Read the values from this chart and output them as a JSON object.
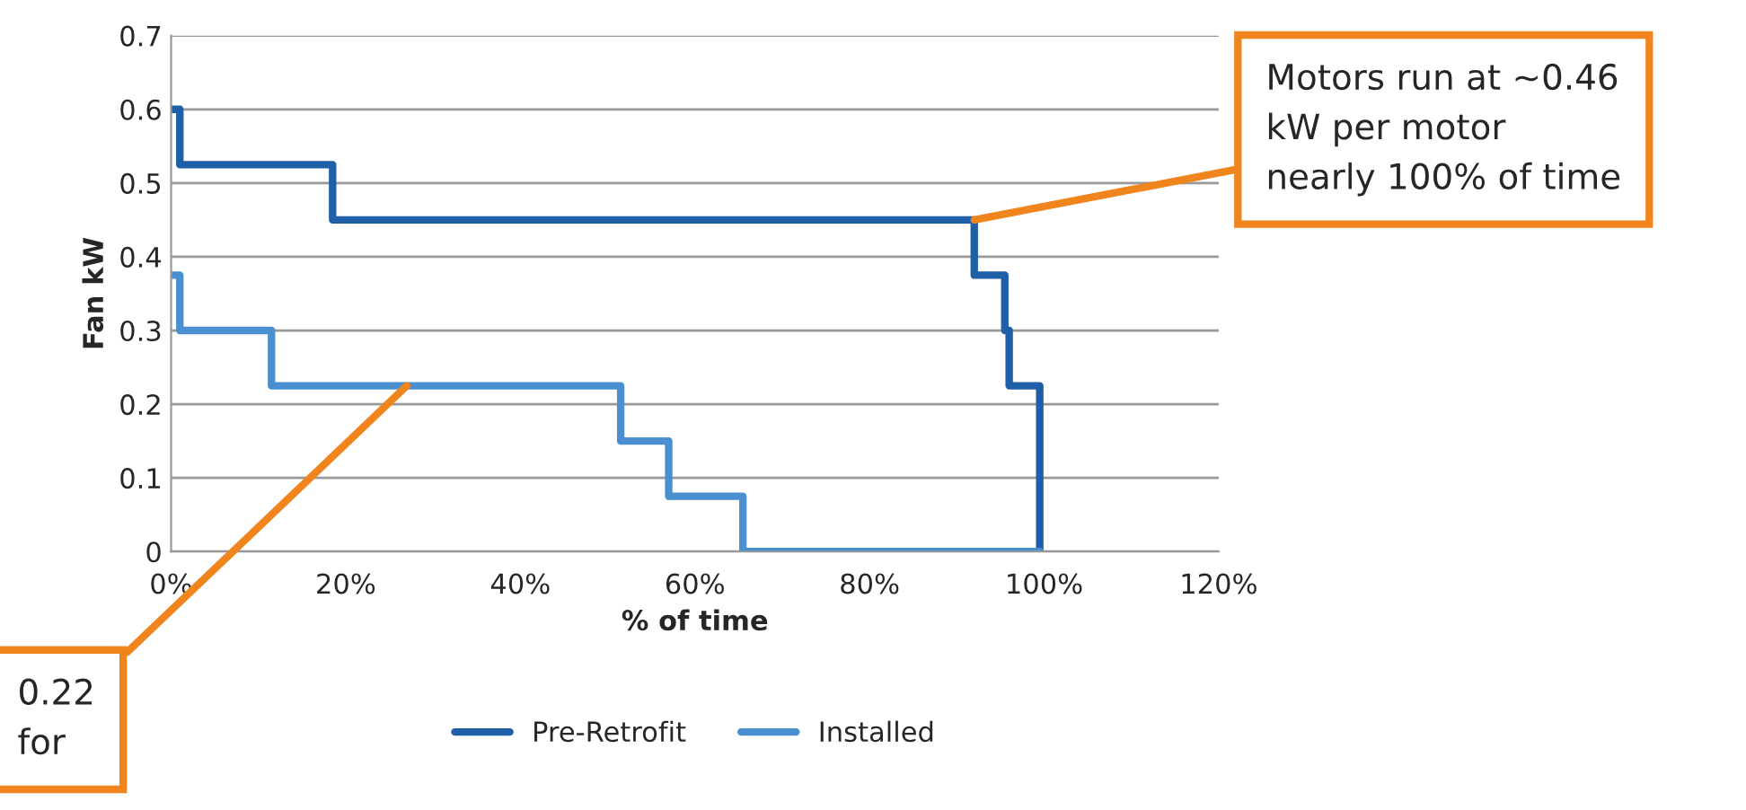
{
  "chart_data": {
    "type": "step",
    "xlabel": "% of time",
    "ylabel": "Fan kW",
    "series": [
      {
        "name": "Pre-Retrofit",
        "color": "#1f5fa8",
        "x": [
          0,
          1,
          18.5,
          92,
          95.5,
          96,
          99.5
        ],
        "values": [
          0.6,
          0.525,
          0.45,
          0.375,
          0.3,
          0.225,
          0
        ]
      },
      {
        "name": "Installed",
        "color": "#4a90d0",
        "x": [
          0,
          1,
          11.5,
          51.5,
          57,
          65.5,
          99.5
        ],
        "values": [
          0.375,
          0.3,
          0.225,
          0.15,
          0.075,
          0,
          0
        ]
      }
    ],
    "xlim": [
      0,
      120
    ],
    "xticks": [
      {
        "value": 0,
        "label": "0%"
      },
      {
        "value": 20,
        "label": "20%"
      },
      {
        "value": 40,
        "label": "40%"
      },
      {
        "value": 60,
        "label": "60%"
      },
      {
        "value": 80,
        "label": "80%"
      },
      {
        "value": 100,
        "label": "100%"
      },
      {
        "value": 120,
        "label": "120%"
      }
    ],
    "ylim": [
      0,
      0.7
    ],
    "yticks": [
      0,
      0.1,
      0.2,
      0.3,
      0.4,
      0.5,
      0.6,
      0.7
    ],
    "grid": "y",
    "legend": "bottom",
    "line_style": "solid",
    "annotations": [
      {
        "text": "Motors run at ~0.46\nkW per motor\nnearly 100% of time",
        "x": 92,
        "y": 0.45
      },
      {
        "text": "0.22\nfor",
        "x": 27,
        "y": 0.225
      }
    ]
  }
}
